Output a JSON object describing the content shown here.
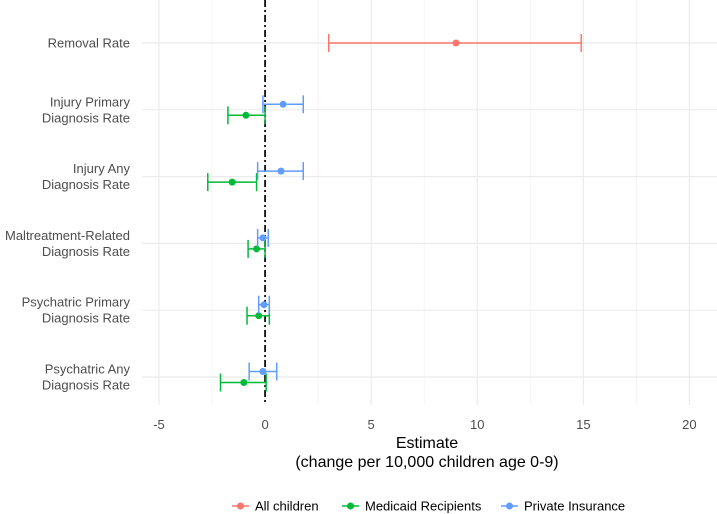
{
  "chart_data": {
    "type": "forest",
    "xlabel_line1": "Estimate",
    "xlabel_line2": "(change per 10,000 children age 0-9)",
    "xlim": [
      -5.8,
      21.3
    ],
    "xticks": [
      -5,
      0,
      5,
      10,
      15,
      20
    ],
    "xtick_labels": [
      "-5",
      "0",
      "5",
      "10",
      "15",
      "20"
    ],
    "reference_line": 0,
    "categories": [
      {
        "key": "removal",
        "label_lines": [
          "Removal Rate"
        ]
      },
      {
        "key": "injury_primary",
        "label_lines": [
          "Injury Primary",
          "Diagnosis Rate"
        ]
      },
      {
        "key": "injury_any",
        "label_lines": [
          "Injury Any",
          "Diagnosis Rate"
        ]
      },
      {
        "key": "maltreatment",
        "label_lines": [
          "Maltreatment-Related",
          "Diagnosis Rate"
        ]
      },
      {
        "key": "psych_primary",
        "label_lines": [
          "Psychatric Primary",
          "Diagnosis Rate"
        ]
      },
      {
        "key": "psych_any",
        "label_lines": [
          "Psychatric Any",
          "Diagnosis Rate"
        ]
      }
    ],
    "series": [
      {
        "name": "All children",
        "color": "#F8766D",
        "points": [
          {
            "category": "removal",
            "estimate": 9.0,
            "lower": 3.0,
            "upper": 14.9
          }
        ]
      },
      {
        "name": "Medicaid Recipients",
        "color": "#00BA38",
        "points": [
          {
            "category": "injury_primary",
            "estimate": -0.9,
            "lower": -1.75,
            "upper": 0.0
          },
          {
            "category": "injury_any",
            "estimate": -1.55,
            "lower": -2.7,
            "upper": -0.4
          },
          {
            "category": "maltreatment",
            "estimate": -0.4,
            "lower": -0.8,
            "upper": 0.0
          },
          {
            "category": "psych_primary",
            "estimate": -0.3,
            "lower": -0.85,
            "upper": 0.2
          },
          {
            "category": "psych_any",
            "estimate": -1.0,
            "lower": -2.1,
            "upper": 0.05
          }
        ]
      },
      {
        "name": "Private Insurance",
        "color": "#619CFF",
        "points": [
          {
            "category": "injury_primary",
            "estimate": 0.85,
            "lower": -0.1,
            "upper": 1.8
          },
          {
            "category": "injury_any",
            "estimate": 0.75,
            "lower": -0.35,
            "upper": 1.8
          },
          {
            "category": "maltreatment",
            "estimate": -0.1,
            "lower": -0.35,
            "upper": 0.15
          },
          {
            "category": "psych_primary",
            "estimate": -0.05,
            "lower": -0.3,
            "upper": 0.2
          },
          {
            "category": "psych_any",
            "estimate": -0.1,
            "lower": -0.75,
            "upper": 0.55
          }
        ]
      }
    ],
    "legend_position": "bottom",
    "grid": true
  }
}
